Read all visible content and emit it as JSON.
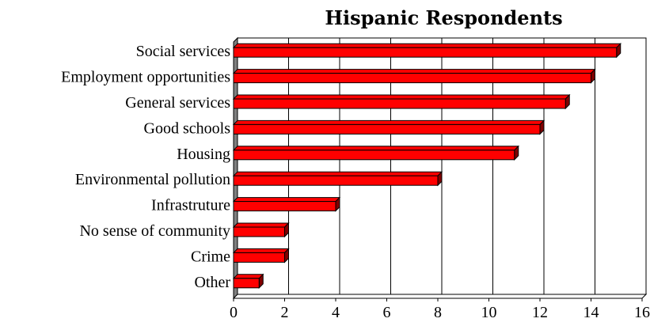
{
  "chart_data": {
    "type": "bar",
    "orientation": "horizontal",
    "title": "Hispanic Respondents",
    "categories": [
      "Social services",
      "Employment opportunities",
      "General services",
      "Good schools",
      "Housing",
      "Environmental pollution",
      "Infrastruture",
      "No sense of community",
      "Crime",
      "Other"
    ],
    "values": [
      15,
      14,
      13,
      12,
      11,
      8,
      4,
      2,
      2,
      1
    ],
    "xlim": [
      0,
      16
    ],
    "xticks": [
      0,
      2,
      4,
      6,
      8,
      10,
      12,
      14,
      16
    ],
    "xlabel": "",
    "ylabel": "",
    "grid": "vertical",
    "bar_color": "#ff0000",
    "bar_dark_color": "#800000",
    "wall_color": "#808080"
  }
}
